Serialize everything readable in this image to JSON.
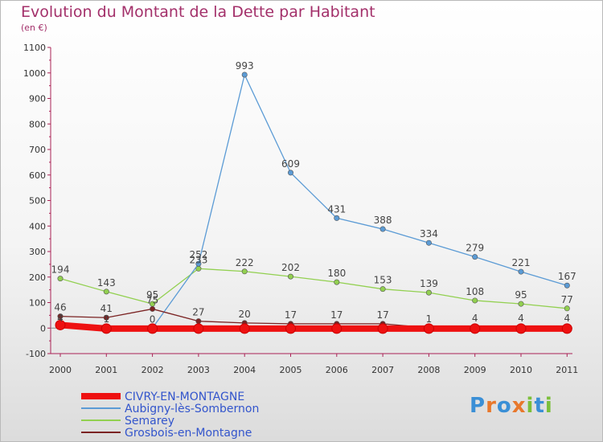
{
  "header": {
    "title": "Evolution du Montant de la Dette par Habitant",
    "unit": "(en €)"
  },
  "logo": {
    "letters": [
      "P",
      "r",
      "o",
      "x",
      "i",
      "t",
      "i"
    ],
    "colors": [
      "#3a8fd6",
      "#e8782c",
      "#3a8fd6",
      "#e8782c",
      "#7bbf3a",
      "#3a8fd6",
      "#7bbf3a"
    ]
  },
  "chart_data": {
    "type": "line",
    "x": [
      "2000",
      "2001",
      "2002",
      "2003",
      "2004",
      "2005",
      "2006",
      "2007",
      "2008",
      "2009",
      "2010",
      "2011"
    ],
    "ylim": [
      -100,
      1100
    ],
    "yticks": [
      -100,
      0,
      100,
      200,
      300,
      400,
      500,
      600,
      700,
      800,
      900,
      1000,
      1100
    ],
    "grid": false,
    "legend_position": "bottom-left",
    "series": [
      {
        "name": "CIVRY-EN-MONTAGNE",
        "color": "#ee1111",
        "values": [
          12,
          -2,
          -2,
          -2,
          -2,
          -2,
          -2,
          -2,
          -2,
          -2,
          -2,
          -2
        ],
        "labels": [
          "",
          "",
          "",
          "",
          "",
          "",
          "",
          "",
          "",
          "",
          "",
          ""
        ]
      },
      {
        "name": "Aubigny-lès-Sombernon",
        "color": "#5b9bd5",
        "values": [
          4,
          1,
          0,
          252,
          993,
          609,
          431,
          388,
          334,
          279,
          221,
          167
        ],
        "labels": [
          "4",
          "1",
          "0",
          "252",
          "993",
          "609",
          "431",
          "388",
          "334",
          "279",
          "221",
          "167"
        ]
      },
      {
        "name": "Semarey",
        "color": "#92d050",
        "values": [
          194,
          143,
          95,
          233,
          222,
          202,
          180,
          153,
          139,
          108,
          95,
          77
        ],
        "labels": [
          "194",
          "143",
          "95",
          "233",
          "222",
          "202",
          "180",
          "153",
          "139",
          "108",
          "95",
          "77"
        ]
      },
      {
        "name": "Grosbois-en-Montagne",
        "color": "#7b2323",
        "values": [
          46,
          41,
          75,
          27,
          20,
          17,
          17,
          17,
          1,
          4,
          4,
          4
        ],
        "labels": [
          "46",
          "41",
          "75",
          "27",
          "20",
          "17",
          "17",
          "17",
          "1",
          "4",
          "4",
          "4"
        ]
      }
    ]
  }
}
